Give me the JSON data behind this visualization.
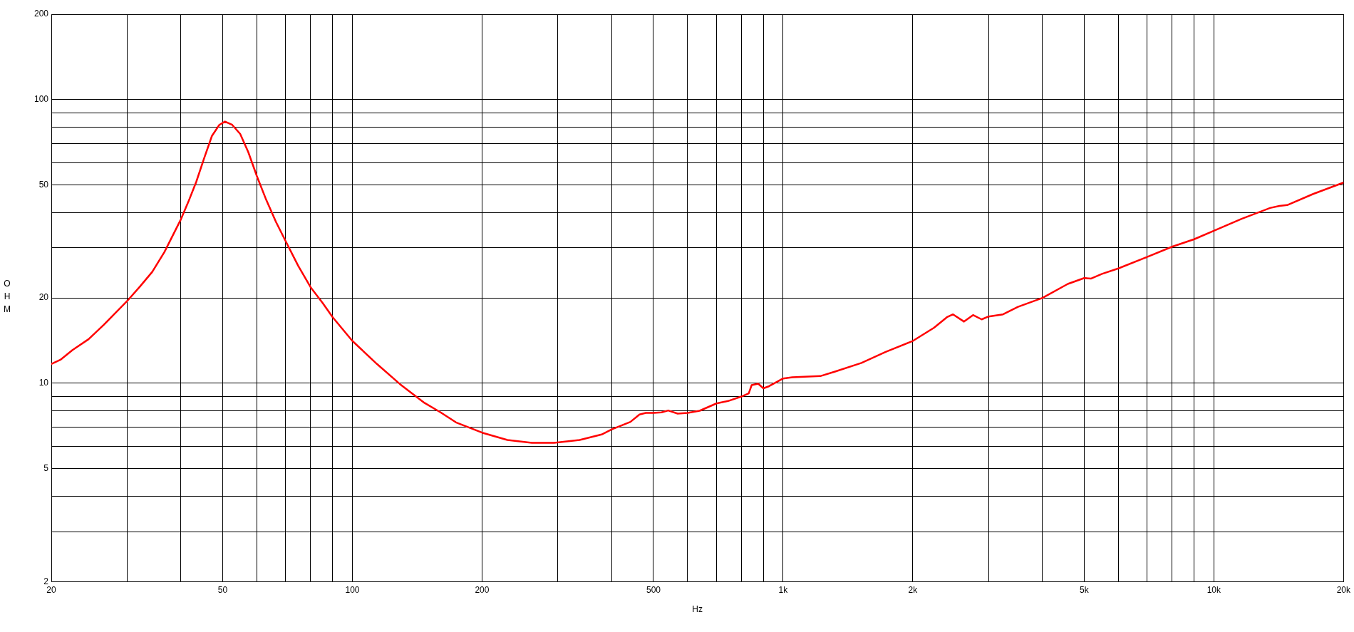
{
  "chart_data": {
    "type": "line",
    "xlabel": "Hz",
    "ylabel": "OHM",
    "log": "xy",
    "grid": true,
    "xlim": [
      20,
      20000
    ],
    "ylim": [
      2,
      200
    ],
    "xticks": [
      20,
      {
        "value": 30,
        "label": null
      },
      {
        "value": 40,
        "label": null
      },
      50,
      {
        "value": 60,
        "label": null
      },
      {
        "value": 70,
        "label": null
      },
      {
        "value": 80,
        "label": null
      },
      {
        "value": 90,
        "label": null
      },
      100,
      200,
      {
        "value": 300,
        "label": null
      },
      {
        "value": 400,
        "label": null
      },
      500,
      {
        "value": 600,
        "label": null
      },
      {
        "value": 700,
        "label": null
      },
      {
        "value": 800,
        "label": null
      },
      {
        "value": 900,
        "label": null
      },
      {
        "value": 1000,
        "label": "1k"
      },
      {
        "value": 2000,
        "label": "2k"
      },
      {
        "value": 3000,
        "label": null
      },
      {
        "value": 4000,
        "label": null
      },
      {
        "value": 5000,
        "label": "5k"
      },
      {
        "value": 6000,
        "label": null
      },
      {
        "value": 7000,
        "label": null
      },
      {
        "value": 8000,
        "label": null
      },
      {
        "value": 9000,
        "label": null
      },
      {
        "value": 10000,
        "label": "10k"
      },
      {
        "value": 20000,
        "label": "20k"
      }
    ],
    "yticks": [
      2,
      {
        "value": 3,
        "label": null
      },
      {
        "value": 4,
        "label": null
      },
      5,
      {
        "value": 6,
        "label": null
      },
      {
        "value": 7,
        "label": null
      },
      {
        "value": 8,
        "label": null
      },
      {
        "value": 9,
        "label": null
      },
      10,
      20,
      {
        "value": 30,
        "label": null
      },
      {
        "value": 40,
        "label": null
      },
      50,
      {
        "value": 60,
        "label": null
      },
      {
        "value": 70,
        "label": null
      },
      {
        "value": 80,
        "label": null
      },
      {
        "value": 90,
        "label": null
      },
      100,
      200
    ],
    "x": [
      20,
      21,
      22.4,
      24.4,
      26.5,
      30,
      32.1,
      34.3,
      36.6,
      40,
      41.6,
      43.4,
      45.3,
      47.2,
      49.1,
      50.6,
      52.6,
      54.9,
      57.3,
      60,
      63.1,
      66.5,
      70,
      74.9,
      80,
      85.3,
      90,
      100,
      114,
      129,
      147,
      160,
      174,
      200,
      229,
      261,
      294,
      337,
      379,
      400,
      442,
      464,
      480,
      500,
      522,
      541,
      569,
      600,
      640,
      700,
      745,
      800,
      832,
      845,
      875,
      900,
      928,
      1000,
      1050,
      1220,
      1320,
      1520,
      1730,
      2000,
      2240,
      2400,
      2480,
      2630,
      2760,
      2890,
      3000,
      3240,
      3510,
      4000,
      4580,
      5000,
      5190,
      5500,
      6000,
      7000,
      8000,
      9000,
      10000,
      11600,
      13500,
      14200,
      14800,
      17000,
      20000
    ],
    "series": [
      {
        "color": "#ff0000",
        "values": [
          11.7,
          12.1,
          13.1,
          14.3,
          16.1,
          19.5,
          21.9,
          24.7,
          29.0,
          37.9,
          43.6,
          51.3,
          62.3,
          74.5,
          81.5,
          83.7,
          81.5,
          75.7,
          65.4,
          53.8,
          44.3,
          37.0,
          31.7,
          25.9,
          21.8,
          19.2,
          17.1,
          14.1,
          11.7,
          9.93,
          8.53,
          7.91,
          7.28,
          6.7,
          6.31,
          6.17,
          6.17,
          6.31,
          6.6,
          6.88,
          7.31,
          7.76,
          7.86,
          7.86,
          7.9,
          8.02,
          7.82,
          7.86,
          8.0,
          8.49,
          8.66,
          8.98,
          9.21,
          9.85,
          9.97,
          9.6,
          9.77,
          10.4,
          10.5,
          10.6,
          11.0,
          11.8,
          12.9,
          14.1,
          15.7,
          17.1,
          17.5,
          16.5,
          17.4,
          16.8,
          17.2,
          17.5,
          18.6,
          20.0,
          22.4,
          23.5,
          23.4,
          24.3,
          25.4,
          27.9,
          30.3,
          32.2,
          34.5,
          38.0,
          41.5,
          42.2,
          42.5,
          46.5,
          51.0
        ]
      }
    ]
  }
}
